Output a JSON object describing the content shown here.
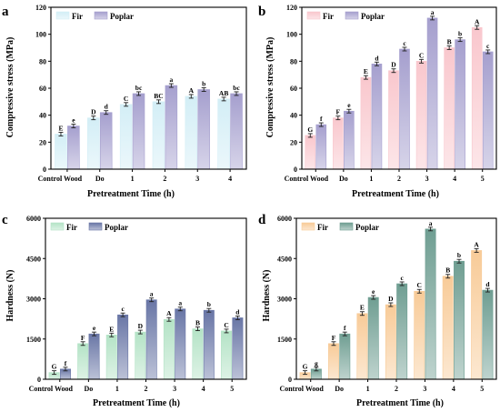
{
  "chart_data": [
    {
      "panel": "a",
      "type": "bar",
      "categories": [
        "Control Wood",
        "Do",
        "1",
        "2",
        "3",
        "4"
      ],
      "series": [
        {
          "name": "Fir",
          "color": "#d3eef6",
          "values": [
            26,
            38,
            48,
            50,
            54,
            52
          ],
          "labels": [
            "E",
            "D",
            "C",
            "BC",
            "A",
            "AB"
          ]
        },
        {
          "name": "Poplar",
          "color": "#a59fce",
          "values": [
            32,
            42,
            56,
            62,
            59,
            56
          ],
          "labels": [
            "e",
            "d",
            "bc",
            "a",
            "b",
            "bc"
          ]
        }
      ],
      "xlabel": "Pretreatment Time (h)",
      "ylabel": "Compressive stress (MPa)",
      "ylim": [
        0,
        120
      ],
      "yticks": [
        0,
        20,
        40,
        60,
        80,
        100,
        120
      ],
      "legend": "top-left"
    },
    {
      "panel": "b",
      "type": "bar",
      "categories": [
        "Control Wood",
        "Do",
        "1",
        "2",
        "3",
        "4",
        "5"
      ],
      "series": [
        {
          "name": "Fir",
          "color": "#f9c7cd",
          "values": [
            25,
            38,
            68,
            73,
            80,
            90,
            105
          ],
          "labels": [
            "G",
            "F",
            "E",
            "D",
            "C",
            "B",
            "A"
          ]
        },
        {
          "name": "Poplar",
          "color": "#a59fce",
          "values": [
            33,
            43,
            78,
            89,
            112,
            96,
            87
          ],
          "labels": [
            "f",
            "e",
            "d",
            "c",
            "a",
            "b",
            "c"
          ]
        }
      ],
      "xlabel": "Pretreatment Time (h)",
      "ylabel": "Compressive stress (MPa)",
      "ylim": [
        0,
        120
      ],
      "yticks": [
        0,
        20,
        40,
        60,
        80,
        100,
        120
      ],
      "legend": "top-left"
    },
    {
      "panel": "c",
      "type": "bar",
      "categories": [
        "Control Wood",
        "Do",
        "1",
        "2",
        "3",
        "4",
        "5"
      ],
      "series": [
        {
          "name": "Fir",
          "color": "#b4e3c6",
          "values": [
            250,
            1330,
            1650,
            1760,
            2230,
            1880,
            1800
          ],
          "labels": [
            "G",
            "F",
            "E",
            "D",
            "A",
            "B",
            "C"
          ]
        },
        {
          "name": "Poplar",
          "color": "#6976a6",
          "values": [
            380,
            1690,
            2400,
            2960,
            2620,
            2570,
            2290
          ],
          "labels": [
            "f",
            "e",
            "c",
            "a",
            "a",
            "b",
            "d"
          ]
        }
      ],
      "xlabel": "Pretreatment Time (h)",
      "ylabel": "Hardness (N)",
      "ylim": [
        0,
        6000
      ],
      "yticks": [
        0,
        1500,
        3000,
        4500,
        6000
      ],
      "legend": "top-left"
    },
    {
      "panel": "d",
      "type": "bar",
      "categories": [
        "Control Wood",
        "Do",
        "1",
        "2",
        "3",
        "4",
        "5"
      ],
      "series": [
        {
          "name": "Fir",
          "color": "#f8cb98",
          "values": [
            250,
            1330,
            2450,
            2780,
            3280,
            3840,
            4800
          ],
          "labels": [
            "G",
            "F",
            "E",
            "D",
            "C",
            "B",
            "A"
          ]
        },
        {
          "name": "Poplar",
          "color": "#6f9e92",
          "values": [
            380,
            1690,
            3050,
            3560,
            5600,
            4400,
            3320
          ],
          "labels": [
            "g",
            "f",
            "e",
            "c",
            "a",
            "b",
            "d"
          ]
        }
      ],
      "xlabel": "Pretreatment Time (h)",
      "ylabel": "Hardness (N)",
      "ylim": [
        0,
        6000
      ],
      "yticks": [
        0,
        1500,
        3000,
        4500,
        6000
      ],
      "legend": "top-left"
    }
  ]
}
